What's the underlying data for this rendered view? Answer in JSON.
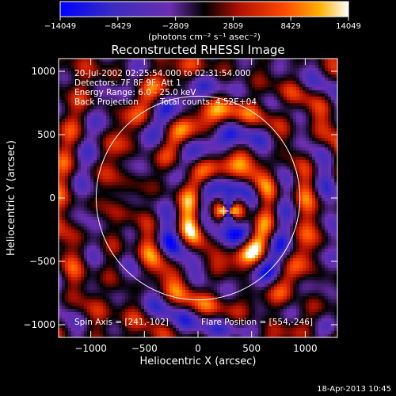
{
  "chart_data": {
    "type": "heatmap",
    "title": "Reconstructed RHESSI Image",
    "xlabel": "Heliocentric X (arcsec)",
    "ylabel": "Heliocentric Y (arcsec)",
    "xlim": [
      -1300,
      1300
    ],
    "ylim": [
      -1100,
      1100
    ],
    "xticks": [
      -1000,
      -500,
      0,
      500,
      1000
    ],
    "xtick_labels": [
      "−1000",
      "−500",
      "0",
      "500",
      "1000"
    ],
    "yticks": [
      -1000,
      -500,
      0,
      500,
      1000
    ],
    "ytick_labels": [
      "−1000",
      "−500",
      "0",
      "500",
      "1000"
    ],
    "colorbar": {
      "min": -14049,
      "max": 14049,
      "ticks": [
        -14049,
        -8429,
        -2809,
        2809,
        8429,
        14049
      ],
      "tick_labels": [
        "−14049",
        "−8429",
        "−2809",
        "2809",
        "8429",
        "14049"
      ],
      "unit_label": "(photons cm⁻² s⁻¹ asec⁻²)",
      "colors": [
        "#0000ff",
        "#4b2ea8",
        "#6a2fb0",
        "#000000",
        "#c01800",
        "#ff4a00",
        "#ffb000",
        "#ffffff"
      ]
    },
    "annotations": {
      "time_range": "20-Jul-2002 02:25:54.000 to 02:31:54.000",
      "detectors": "Detectors: 7F 8F 9F, Att 1",
      "energy_range": "Energy Range: 6.0 - 25.0 keV",
      "method": "Back Projection",
      "total_counts": "Total counts: 4.52E+04",
      "spin_axis": "Spin Axis = [241,-102]",
      "flare_position": "Flare Position = [554,-246]"
    },
    "solar_limb_radius_arcsec": 950,
    "marker": {
      "x": 241,
      "y": -102
    }
  },
  "footer": {
    "timestamp": "18-Apr-2013 10:45"
  }
}
